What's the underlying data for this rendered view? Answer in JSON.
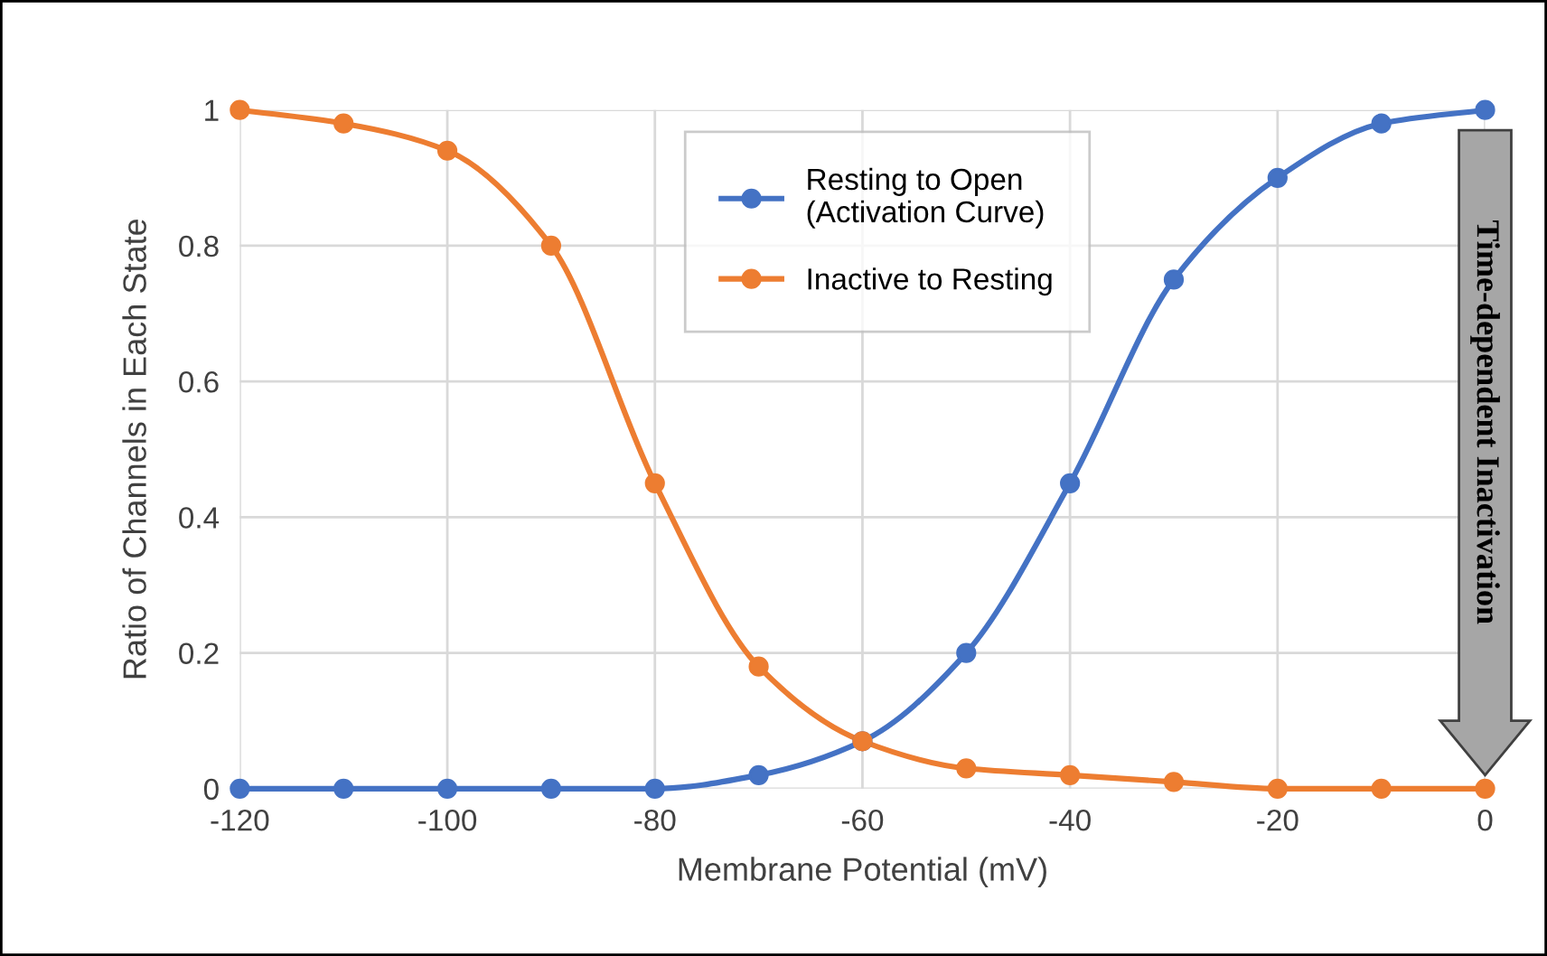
{
  "chart_data": {
    "type": "line",
    "xlabel": "Membrane Potential (mV)",
    "ylabel": "Ratio of Channels in Each State",
    "x": [
      -120,
      -110,
      -100,
      -90,
      -80,
      -70,
      -60,
      -50,
      -40,
      -30,
      -20,
      -10,
      0
    ],
    "series": [
      {
        "name": "Resting to Open\n(Activation Curve)",
        "color": "#4472c4",
        "values": [
          0,
          0,
          0,
          0,
          0,
          0.02,
          0.07,
          0.2,
          0.45,
          0.75,
          0.9,
          0.98,
          1
        ]
      },
      {
        "name": "Inactive to Resting",
        "color": "#ed7d31",
        "values": [
          1,
          0.98,
          0.94,
          0.8,
          0.45,
          0.18,
          0.07,
          0.03,
          0.02,
          0.01,
          0,
          0,
          0
        ]
      }
    ],
    "xlim": [
      -120,
      0
    ],
    "ylim": [
      0,
      1
    ],
    "xticks": [
      -120,
      -100,
      -80,
      -60,
      -40,
      -20,
      0
    ],
    "yticks": [
      0,
      0.2,
      0.4,
      0.6,
      0.8,
      1
    ],
    "grid": true,
    "legend": "top",
    "marker": "circle",
    "line_style": "solid",
    "annotations": [
      "Time-dependent Inactivation"
    ]
  }
}
